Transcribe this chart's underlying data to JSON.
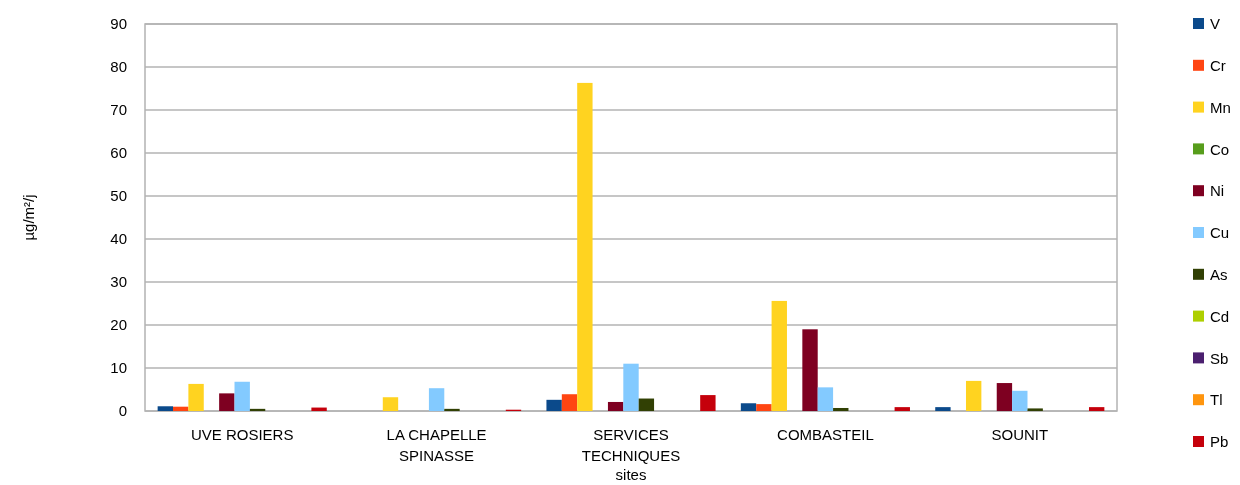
{
  "chart_data": {
    "type": "bar",
    "xlabel": "sites",
    "ylabel": "µg/m²/j",
    "categories": [
      "UVE ROSIERS",
      "LA CHAPELLE SPINASSE",
      "SERVICES TECHNIQUES",
      "COMBASTEIL",
      "SOUNIT"
    ],
    "series": [
      {
        "name": "V",
        "color": "#0b4a8b",
        "values": [
          1.1,
          0,
          2.6,
          1.8,
          0.9
        ]
      },
      {
        "name": "Cr",
        "color": "#ff4512",
        "values": [
          1.0,
          0,
          3.9,
          1.6,
          0
        ]
      },
      {
        "name": "Mn",
        "color": "#ffd320",
        "values": [
          6.3,
          3.2,
          76.3,
          25.6,
          7.0
        ]
      },
      {
        "name": "Co",
        "color": "#579d1c",
        "values": [
          0,
          0,
          0,
          0,
          0
        ]
      },
      {
        "name": "Ni",
        "color": "#7e0021",
        "values": [
          4.1,
          0,
          2.1,
          19.0,
          6.5
        ]
      },
      {
        "name": "Cu",
        "color": "#83caff",
        "values": [
          6.8,
          5.3,
          11.0,
          5.5,
          4.7
        ]
      },
      {
        "name": "As",
        "color": "#314004",
        "values": [
          0.5,
          0.5,
          2.9,
          0.7,
          0.6
        ]
      },
      {
        "name": "Cd",
        "color": "#aecf00",
        "values": [
          0,
          0,
          0,
          0,
          0
        ]
      },
      {
        "name": "Sb",
        "color": "#4b1f6f",
        "values": [
          0,
          0,
          0,
          0,
          0
        ]
      },
      {
        "name": "Tl",
        "color": "#ff950e",
        "values": [
          0,
          0,
          0,
          0,
          0
        ]
      },
      {
        "name": "Pb",
        "color": "#c5000b",
        "values": [
          0.8,
          0.3,
          3.7,
          0.9,
          0.9
        ]
      }
    ],
    "ylim": [
      0,
      90
    ],
    "yticks": [
      0,
      10,
      20,
      30,
      40,
      50,
      60,
      70,
      80,
      90
    ],
    "grid": "y",
    "legend": "right"
  }
}
